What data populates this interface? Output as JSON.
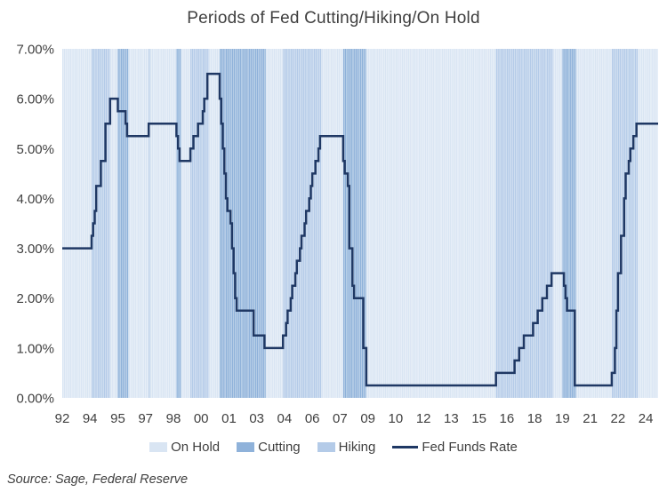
{
  "source_note": "Source: Sage, Federal Reserve",
  "colors": {
    "on_hold": "#d9e5f3",
    "cutting": "#8fb2da",
    "hiking": "#b4cbe8",
    "line": "#1f3864",
    "text": "#3f3f3f"
  },
  "chart_data": {
    "type": "line",
    "title": "Periods of Fed Cutting/Hiking/On Hold",
    "x_axis": {
      "start": "1992-07",
      "end": "2024-09",
      "tick_interval_months": 18,
      "tick_labels": [
        "92",
        "94",
        "95",
        "97",
        "98",
        "00",
        "01",
        "03",
        "04",
        "06",
        "07",
        "09",
        "10",
        "12",
        "13",
        "15",
        "16",
        "18",
        "19",
        "21",
        "22",
        "24"
      ]
    },
    "y_axis": {
      "min": 0,
      "max": 7,
      "tick_labels": [
        "7.00%",
        "6.00%",
        "5.00%",
        "4.00%",
        "3.00%",
        "2.00%",
        "1.00%",
        "0.00%"
      ]
    },
    "legend": [
      {
        "label": "On Hold",
        "swatch": "on_hold",
        "kind": "box"
      },
      {
        "label": "Cutting",
        "swatch": "cutting",
        "kind": "box"
      },
      {
        "label": "Hiking",
        "swatch": "hiking",
        "kind": "box"
      },
      {
        "label": "Fed Funds Rate",
        "swatch": "line",
        "kind": "line"
      }
    ],
    "series": [
      {
        "name": "Fed Funds Rate",
        "step_points": [
          [
            "1992-07",
            3.0
          ],
          [
            "1994-02",
            3.25
          ],
          [
            "1994-03",
            3.5
          ],
          [
            "1994-04",
            3.75
          ],
          [
            "1994-05",
            4.25
          ],
          [
            "1994-08",
            4.75
          ],
          [
            "1994-11",
            5.5
          ],
          [
            "1995-02",
            6.0
          ],
          [
            "1995-07",
            5.75
          ],
          [
            "1995-12",
            5.5
          ],
          [
            "1996-01",
            5.25
          ],
          [
            "1997-03",
            5.5
          ],
          [
            "1998-09",
            5.25
          ],
          [
            "1998-10",
            5.0
          ],
          [
            "1998-11",
            4.75
          ],
          [
            "1999-06",
            5.0
          ],
          [
            "1999-08",
            5.25
          ],
          [
            "1999-11",
            5.5
          ],
          [
            "2000-02",
            5.75
          ],
          [
            "2000-03",
            6.0
          ],
          [
            "2000-05",
            6.5
          ],
          [
            "2001-01",
            6.0
          ],
          [
            "2001-02",
            5.5
          ],
          [
            "2001-03",
            5.0
          ],
          [
            "2001-04",
            4.5
          ],
          [
            "2001-05",
            4.0
          ],
          [
            "2001-06",
            3.75
          ],
          [
            "2001-08",
            3.5
          ],
          [
            "2001-09",
            3.0
          ],
          [
            "2001-10",
            2.5
          ],
          [
            "2001-11",
            2.0
          ],
          [
            "2001-12",
            1.75
          ],
          [
            "2002-11",
            1.25
          ],
          [
            "2003-06",
            1.0
          ],
          [
            "2004-06",
            1.25
          ],
          [
            "2004-08",
            1.5
          ],
          [
            "2004-09",
            1.75
          ],
          [
            "2004-11",
            2.0
          ],
          [
            "2004-12",
            2.25
          ],
          [
            "2005-02",
            2.5
          ],
          [
            "2005-03",
            2.75
          ],
          [
            "2005-05",
            3.0
          ],
          [
            "2005-06",
            3.25
          ],
          [
            "2005-08",
            3.5
          ],
          [
            "2005-09",
            3.75
          ],
          [
            "2005-11",
            4.0
          ],
          [
            "2005-12",
            4.25
          ],
          [
            "2006-01",
            4.5
          ],
          [
            "2006-03",
            4.75
          ],
          [
            "2006-05",
            5.0
          ],
          [
            "2006-06",
            5.25
          ],
          [
            "2007-09",
            4.75
          ],
          [
            "2007-10",
            4.5
          ],
          [
            "2007-12",
            4.25
          ],
          [
            "2008-01",
            3.0
          ],
          [
            "2008-03",
            2.25
          ],
          [
            "2008-04",
            2.0
          ],
          [
            "2008-10",
            1.0
          ],
          [
            "2008-12",
            0.25
          ],
          [
            "2015-12",
            0.5
          ],
          [
            "2016-12",
            0.75
          ],
          [
            "2017-03",
            1.0
          ],
          [
            "2017-06",
            1.25
          ],
          [
            "2017-12",
            1.5
          ],
          [
            "2018-03",
            1.75
          ],
          [
            "2018-06",
            2.0
          ],
          [
            "2018-09",
            2.25
          ],
          [
            "2018-12",
            2.5
          ],
          [
            "2019-08",
            2.25
          ],
          [
            "2019-09",
            2.0
          ],
          [
            "2019-10",
            1.75
          ],
          [
            "2020-03",
            0.25
          ],
          [
            "2022-03",
            0.5
          ],
          [
            "2022-05",
            1.0
          ],
          [
            "2022-06",
            1.75
          ],
          [
            "2022-07",
            2.5
          ],
          [
            "2022-09",
            3.25
          ],
          [
            "2022-11",
            4.0
          ],
          [
            "2022-12",
            4.5
          ],
          [
            "2023-02",
            4.75
          ],
          [
            "2023-03",
            5.0
          ],
          [
            "2023-05",
            5.25
          ],
          [
            "2023-07",
            5.5
          ]
        ]
      }
    ],
    "bands": [
      {
        "start": "1992-07",
        "end": "1994-02",
        "type": "on_hold"
      },
      {
        "start": "1994-02",
        "end": "1995-02",
        "type": "hiking"
      },
      {
        "start": "1995-02",
        "end": "1995-07",
        "type": "on_hold"
      },
      {
        "start": "1995-07",
        "end": "1996-02",
        "type": "cutting"
      },
      {
        "start": "1996-02",
        "end": "1997-03",
        "type": "on_hold"
      },
      {
        "start": "1997-03",
        "end": "1997-04",
        "type": "hiking"
      },
      {
        "start": "1997-04",
        "end": "1998-09",
        "type": "on_hold"
      },
      {
        "start": "1998-09",
        "end": "1998-12",
        "type": "cutting"
      },
      {
        "start": "1998-12",
        "end": "1999-06",
        "type": "on_hold"
      },
      {
        "start": "1999-06",
        "end": "2000-06",
        "type": "hiking"
      },
      {
        "start": "2000-06",
        "end": "2001-01",
        "type": "on_hold"
      },
      {
        "start": "2001-01",
        "end": "2003-07",
        "type": "cutting"
      },
      {
        "start": "2003-07",
        "end": "2004-06",
        "type": "on_hold"
      },
      {
        "start": "2004-06",
        "end": "2006-07",
        "type": "hiking"
      },
      {
        "start": "2006-07",
        "end": "2007-09",
        "type": "on_hold"
      },
      {
        "start": "2007-09",
        "end": "2008-12",
        "type": "cutting"
      },
      {
        "start": "2008-12",
        "end": "2015-12",
        "type": "on_hold"
      },
      {
        "start": "2015-12",
        "end": "2019-01",
        "type": "hiking"
      },
      {
        "start": "2019-01",
        "end": "2019-07",
        "type": "on_hold"
      },
      {
        "start": "2019-07",
        "end": "2020-04",
        "type": "cutting"
      },
      {
        "start": "2020-04",
        "end": "2022-03",
        "type": "on_hold"
      },
      {
        "start": "2022-03",
        "end": "2023-08",
        "type": "hiking"
      },
      {
        "start": "2023-08",
        "end": "2024-09",
        "type": "on_hold"
      }
    ]
  }
}
